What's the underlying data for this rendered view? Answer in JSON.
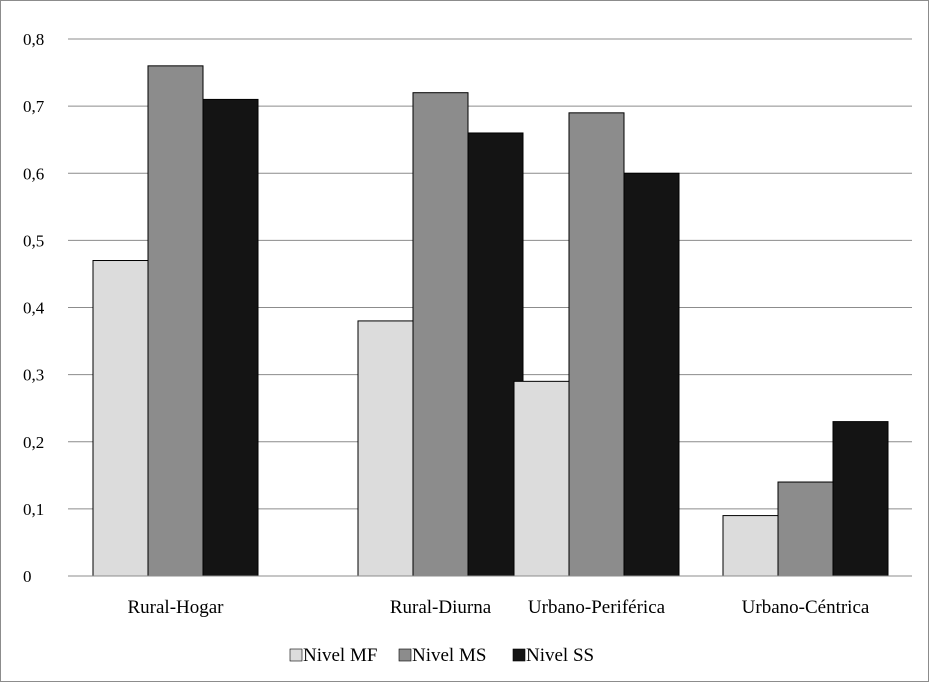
{
  "chart_data": {
    "type": "bar",
    "categories": [
      "Rural-Hogar",
      "Rural-Diurna",
      "Urbano-Periférica",
      "Urbano-Céntrica"
    ],
    "series": [
      {
        "name": "Nivel MF",
        "color": "#dcdcdc",
        "values": [
          0.47,
          0.38,
          0.29,
          0.09
        ]
      },
      {
        "name": "Nivel MS",
        "color": "#8c8c8c",
        "values": [
          0.76,
          0.72,
          0.69,
          0.14
        ]
      },
      {
        "name": "Nivel SS",
        "color": "#141414",
        "values": [
          0.71,
          0.66,
          0.6,
          0.23
        ]
      }
    ],
    "ylim": [
      0,
      0.8
    ],
    "yticks": [
      0,
      0.1,
      0.2,
      0.3,
      0.4,
      0.5,
      0.6,
      0.7,
      0.8
    ],
    "ytick_labels": [
      "0",
      "0,1",
      "0,2",
      "0,3",
      "0,4",
      "0,5",
      "0,6",
      "0,7",
      "0,8"
    ],
    "grid": true,
    "legend_position": "bottom",
    "title": "",
    "xlabel": "",
    "ylabel": ""
  }
}
